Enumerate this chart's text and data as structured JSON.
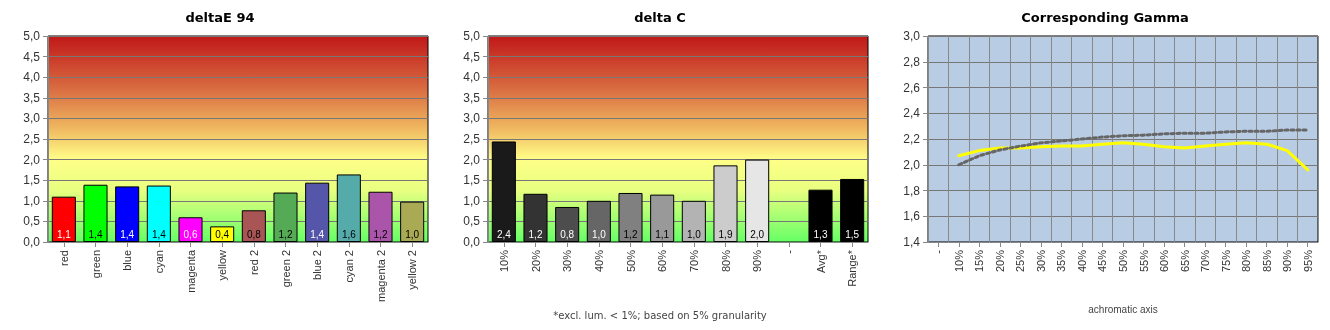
{
  "chart_data": [
    {
      "type": "bar",
      "title": "deltaE 94",
      "categories": [
        "red",
        "green",
        "blue",
        "cyan",
        "magenta",
        "yellow",
        "red 2",
        "green 2",
        "blue 2",
        "cyan 2",
        "magenta 2",
        "yellow 2"
      ],
      "values": [
        1.1,
        1.39,
        1.35,
        1.37,
        0.6,
        0.38,
        0.77,
        1.2,
        1.44,
        1.64,
        1.22,
        0.98
      ],
      "value_labels": [
        "1,1",
        "1,4",
        "1,4",
        "1,4",
        "0,6",
        "0,4",
        "0,8",
        "1,2",
        "1,4",
        "1,6",
        "1,2",
        "1,0"
      ],
      "colors": [
        "#ff0000",
        "#00ff00",
        "#0000ff",
        "#00ffff",
        "#ff00ff",
        "#ffff00",
        "#aa5555",
        "#55aa55",
        "#5555aa",
        "#55aaaa",
        "#aa55aa",
        "#aaaa55"
      ],
      "ylim": [
        0,
        5
      ],
      "yticks": [
        {
          "value": 0,
          "label": "0,0"
        },
        {
          "value": 0.5,
          "label": "0,5"
        },
        {
          "value": 1,
          "label": "1,0"
        },
        {
          "value": 1.5,
          "label": "1,5"
        },
        {
          "value": 2,
          "label": "2,0"
        },
        {
          "value": 2.5,
          "label": "2,5"
        },
        {
          "value": 3,
          "label": "3,0"
        },
        {
          "value": 3.5,
          "label": "3,5"
        },
        {
          "value": 4,
          "label": "4,0"
        },
        {
          "value": 4.5,
          "label": "4,5"
        },
        {
          "value": 5,
          "label": "5,0"
        }
      ],
      "grid": "y"
    },
    {
      "type": "bar",
      "title": "delta C",
      "categories": [
        "10%",
        "20%",
        "30%",
        "40%",
        "50%",
        "60%",
        "70%",
        "80%",
        "90%",
        "-",
        "Avg*",
        "Range*"
      ],
      "values": [
        2.44,
        1.17,
        0.85,
        1.0,
        1.19,
        1.15,
        1.0,
        1.86,
        2.0,
        null,
        1.27,
        1.53
      ],
      "value_labels": [
        "2,4",
        "1,2",
        "0,8",
        "1,0",
        "1,2",
        "1,1",
        "1,0",
        "1,9",
        "2,0",
        null,
        "1,3",
        "1,5"
      ],
      "colors": [
        "#1a1a1a",
        "#333333",
        "#4d4d4d",
        "#666666",
        "#808080",
        "#999999",
        "#b3b3b3",
        "#cccccc",
        "#e6e6e6",
        "#000000",
        "#000000",
        "#000000"
      ],
      "ylim": [
        0,
        5
      ],
      "yticks": [
        {
          "value": 0,
          "label": "0,0"
        },
        {
          "value": 0.5,
          "label": "0,5"
        },
        {
          "value": 1,
          "label": "1,0"
        },
        {
          "value": 1.5,
          "label": "1,5"
        },
        {
          "value": 2,
          "label": "2,0"
        },
        {
          "value": 2.5,
          "label": "2,5"
        },
        {
          "value": 3,
          "label": "3,0"
        },
        {
          "value": 3.5,
          "label": "3,5"
        },
        {
          "value": 4,
          "label": "4,0"
        },
        {
          "value": 4.5,
          "label": "4,5"
        },
        {
          "value": 5,
          "label": "5,0"
        }
      ],
      "grid": "y",
      "annotations": [
        "*excl. lum. < 1%; based on 5% granularity"
      ]
    },
    {
      "type": "line",
      "title": "Corresponding Gamma",
      "xlabel": "achromatic axis",
      "categories": [
        "-",
        "10%",
        "15%",
        "20%",
        "25%",
        "30%",
        "35%",
        "40%",
        "45%",
        "50%",
        "55%",
        "60%",
        "65%",
        "70%",
        "75%",
        "80%",
        "85%",
        "90%",
        "95%"
      ],
      "series": [
        {
          "color": "#ffff00",
          "line_style": "solid",
          "values": [
            null,
            2.07,
            2.11,
            2.13,
            2.13,
            2.14,
            2.145,
            2.145,
            2.16,
            2.17,
            2.16,
            2.14,
            2.13,
            2.145,
            2.16,
            2.17,
            2.16,
            2.11,
            1.96
          ]
        },
        {
          "color": "#666666",
          "line_style": "dotted",
          "values": [
            null,
            2.0,
            2.07,
            2.115,
            2.145,
            2.17,
            2.185,
            2.2,
            2.215,
            2.225,
            2.23,
            2.24,
            2.245,
            2.245,
            2.255,
            2.26,
            2.26,
            2.27,
            2.27
          ]
        }
      ],
      "marker": "none",
      "ylim": [
        1.4,
        3.0
      ],
      "yticks": [
        {
          "value": 1.4,
          "label": "1,4"
        },
        {
          "value": 1.6,
          "label": "1,6"
        },
        {
          "value": 1.8,
          "label": "1,8"
        },
        {
          "value": 2.0,
          "label": "2,0"
        },
        {
          "value": 2.2,
          "label": "2,2"
        },
        {
          "value": 2.4,
          "label": "2,4"
        },
        {
          "value": 2.6,
          "label": "2,6"
        },
        {
          "value": 2.8,
          "label": "2,8"
        },
        {
          "value": 3.0,
          "label": "3,0"
        }
      ],
      "grid": true
    }
  ]
}
